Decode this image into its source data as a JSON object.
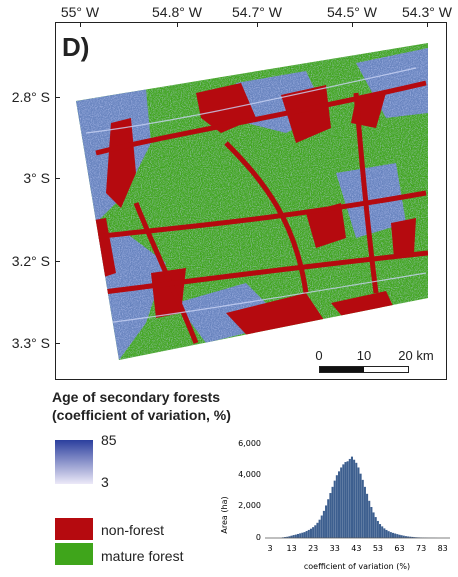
{
  "panel_label": "D)",
  "axes": {
    "longitude_ticks": [
      "55° W",
      "54.8° W",
      "54.7° W",
      "54.5° W",
      "54.3° W"
    ],
    "latitude_ticks": [
      "2.8° S",
      "3° S",
      "3.2° S",
      "3.3° S"
    ]
  },
  "scale_bar": {
    "labels": [
      "0",
      "10",
      "20 km"
    ]
  },
  "legend": {
    "title_line1": "Age of secondary forests",
    "title_line2": "(coefficient of variation, %)",
    "gradient_max": "85",
    "gradient_min": "3",
    "classes": [
      {
        "label": "non-forest",
        "color": "#b50a0f"
      },
      {
        "label": "mature forest",
        "color": "#3fa51b"
      }
    ]
  },
  "colors": {
    "gradient_high": "#2b3f9e",
    "gradient_low": "#ece9f8",
    "histogram_bar": "#3d5f8f"
  },
  "histogram": {
    "ylabel": "Area (ha)",
    "xlabel": "coefficient of variation (%)",
    "yticks": [
      "0",
      "2,000",
      "4,000",
      "6,000"
    ],
    "xticks": [
      "3",
      "13",
      "23",
      "33",
      "43",
      "53",
      "63",
      "73",
      "83"
    ]
  },
  "chart_data": {
    "type": "bar",
    "xlabel": "coefficient of variation (%)",
    "ylabel": "Area (ha)",
    "ylim": [
      0,
      6000
    ],
    "xlim": [
      3,
      85
    ],
    "x": [
      9,
      10,
      11,
      12,
      13,
      14,
      15,
      16,
      17,
      18,
      19,
      20,
      21,
      22,
      23,
      24,
      25,
      26,
      27,
      28,
      29,
      30,
      31,
      32,
      33,
      34,
      35,
      36,
      37,
      38,
      39,
      40,
      41,
      42,
      43,
      44,
      45,
      46,
      47,
      48,
      49,
      50,
      51,
      52,
      53,
      54,
      55,
      56,
      57,
      58,
      59,
      60,
      61,
      62,
      63,
      64,
      65,
      66,
      67,
      68,
      69,
      70,
      71,
      72,
      73,
      74,
      75,
      76,
      77,
      78,
      79,
      80
    ],
    "values": [
      40,
      60,
      80,
      110,
      150,
      190,
      220,
      260,
      300,
      340,
      380,
      450,
      520,
      600,
      700,
      820,
      980,
      1180,
      1450,
      1750,
      2100,
      2500,
      2900,
      3300,
      3700,
      4050,
      4300,
      4550,
      4750,
      4900,
      4950,
      5100,
      5250,
      5050,
      4850,
      4550,
      4150,
      3750,
      3300,
      2850,
      2400,
      2000,
      1650,
      1350,
      1100,
      900,
      750,
      620,
      520,
      440,
      380,
      330,
      290,
      250,
      210,
      180,
      150,
      120,
      100,
      85,
      70,
      55,
      45,
      38,
      30,
      25,
      20,
      15,
      12,
      10,
      8,
      5
    ]
  }
}
